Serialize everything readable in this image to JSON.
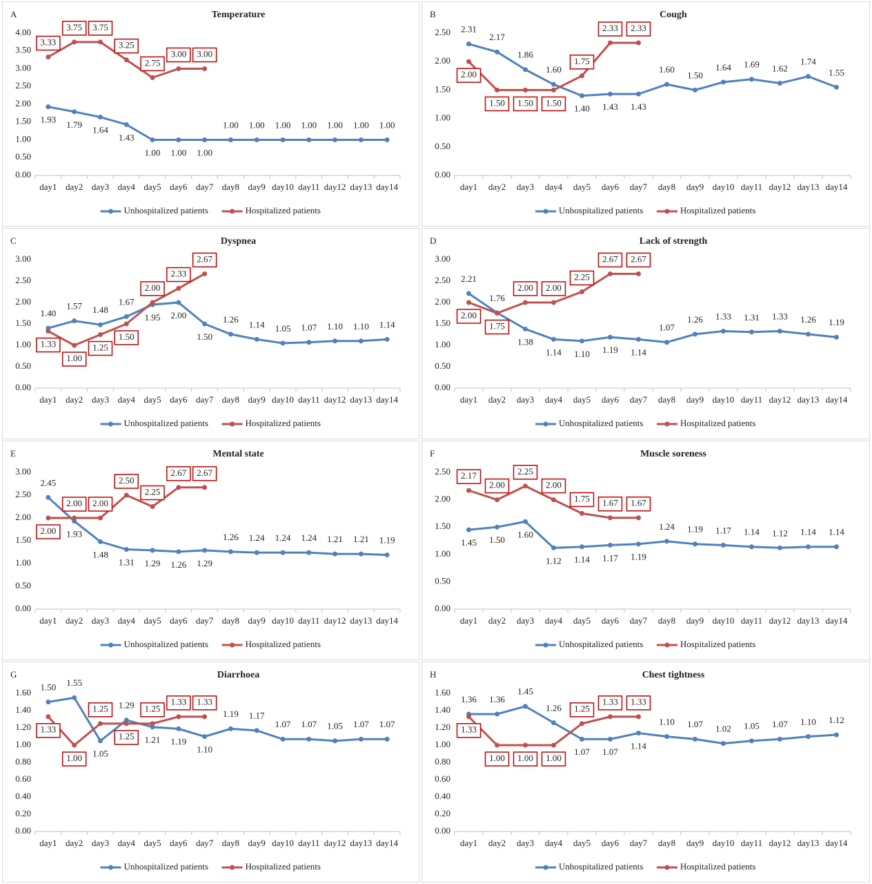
{
  "chart_data": [
    {
      "type": "line",
      "panel": "A",
      "title": "Temperature",
      "categories": [
        "day1",
        "day2",
        "day3",
        "day4",
        "day5",
        "day6",
        "day7",
        "day8",
        "day9",
        "day10",
        "day11",
        "day12",
        "day13",
        "day14"
      ],
      "ylim": [
        0,
        4
      ],
      "yticks": [
        {
          "value": 0,
          "label": "0.00"
        },
        {
          "value": 0.5,
          "label": "0.50"
        },
        {
          "value": 1,
          "label": "1.00"
        },
        {
          "value": 1.5,
          "label": "1.50"
        },
        {
          "value": 2,
          "label": "2.00"
        },
        {
          "value": 2.5,
          "label": "2.50"
        },
        {
          "value": 3,
          "label": "3.00"
        },
        {
          "value": 3.5,
          "label": "3.50"
        },
        {
          "value": 4,
          "label": "4.00"
        }
      ],
      "series": [
        {
          "name": "Unhospitalized patients",
          "color": "#4f81bd",
          "values": [
            1.93,
            1.79,
            1.64,
            1.43,
            1,
            1,
            1,
            1,
            1,
            1,
            1,
            1,
            1,
            1
          ],
          "value_labels": [
            "1.93",
            "1.79",
            "1.64",
            "1.43",
            "1.00",
            "1.00",
            "1.00",
            "1.00",
            "1.00",
            "1.00",
            "1.00",
            "1.00",
            "1.00",
            "1.00"
          ]
        },
        {
          "name": "Hospitalized patients",
          "color": "#c0504d",
          "values": [
            3.33,
            3.75,
            3.75,
            3.25,
            2.75,
            3,
            3,
            null,
            null,
            null,
            null,
            null,
            null,
            null
          ],
          "value_labels": [
            "3.33",
            "3.75",
            "3.75",
            "3.25",
            "2.75",
            "3.00",
            "3.00",
            null,
            null,
            null,
            null,
            null,
            null,
            null
          ]
        }
      ]
    },
    {
      "type": "line",
      "panel": "B",
      "title": "Cough",
      "categories": [
        "day1",
        "day2",
        "day3",
        "day4",
        "day5",
        "day6",
        "day7",
        "day8",
        "day9",
        "day10",
        "day11",
        "day12",
        "day13",
        "day14"
      ],
      "ylim": [
        0,
        2.5
      ],
      "yticks": [
        {
          "value": 0,
          "label": "0.00"
        },
        {
          "value": 0.5,
          "label": "0.50"
        },
        {
          "value": 1,
          "label": "1.00"
        },
        {
          "value": 1.5,
          "label": "1.50"
        },
        {
          "value": 2,
          "label": "2.00"
        },
        {
          "value": 2.5,
          "label": "2.50"
        }
      ],
      "series": [
        {
          "name": "Unhospitalized patients",
          "color": "#4f81bd",
          "values": [
            2.31,
            2.17,
            1.86,
            1.6,
            1.4,
            1.43,
            1.43,
            1.6,
            1.5,
            1.64,
            1.69,
            1.62,
            1.74,
            1.55
          ],
          "value_labels": [
            "2.31",
            "2.17",
            "1.86",
            "1.60",
            "1.40",
            "1.43",
            "1.43",
            "1.60",
            "1.50",
            "1.64",
            "1.69",
            "1.62",
            "1.74",
            "1.55"
          ]
        },
        {
          "name": "Hospitalized patients",
          "color": "#c0504d",
          "values": [
            2,
            1.5,
            1.5,
            1.5,
            1.75,
            2.33,
            2.33,
            null,
            null,
            null,
            null,
            null,
            null,
            null
          ],
          "value_labels": [
            "2.00",
            "1.50",
            "1.50",
            "1.50",
            "1.75",
            "2.33",
            "2.33",
            null,
            null,
            null,
            null,
            null,
            null,
            null
          ]
        }
      ]
    },
    {
      "type": "line",
      "panel": "C",
      "title": "Dyspnea",
      "categories": [
        "day1",
        "day2",
        "day3",
        "day4",
        "day5",
        "day6",
        "day7",
        "day8",
        "day9",
        "day10",
        "day11",
        "day12",
        "day13",
        "day14"
      ],
      "ylim": [
        0,
        3
      ],
      "yticks": [
        {
          "value": 0,
          "label": "0.00"
        },
        {
          "value": 0.5,
          "label": "0.50"
        },
        {
          "value": 1,
          "label": "1.00"
        },
        {
          "value": 1.5,
          "label": "1.50"
        },
        {
          "value": 2,
          "label": "2.00"
        },
        {
          "value": 2.5,
          "label": "2.50"
        },
        {
          "value": 3,
          "label": "3.00"
        }
      ],
      "series": [
        {
          "name": "Unhospitalized patients",
          "color": "#4f81bd",
          "values": [
            1.4,
            1.57,
            1.48,
            1.67,
            1.95,
            2,
            1.5,
            1.26,
            1.14,
            1.05,
            1.07,
            1.1,
            1.1,
            1.14
          ],
          "value_labels": [
            "1.40",
            "1.57",
            "1.48",
            "1.67",
            "1.95",
            "2.00",
            "1.50",
            "1.26",
            "1.14",
            "1.05",
            "1.07",
            "1.10",
            "1.10",
            "1.14"
          ]
        },
        {
          "name": "Hospitalized patients",
          "color": "#c0504d",
          "values": [
            1.33,
            1,
            1.25,
            1.5,
            2,
            2.33,
            2.67,
            null,
            null,
            null,
            null,
            null,
            null,
            null
          ],
          "value_labels": [
            "1.33",
            "1.00",
            "1.25",
            "1.50",
            "2.00",
            "2.33",
            "2.67",
            null,
            null,
            null,
            null,
            null,
            null,
            null
          ]
        }
      ]
    },
    {
      "type": "line",
      "panel": "D",
      "title": "Lack of strength",
      "categories": [
        "day1",
        "day2",
        "day3",
        "day4",
        "day5",
        "day6",
        "day7",
        "day8",
        "day9",
        "day10",
        "day11",
        "day12",
        "day13",
        "day14"
      ],
      "ylim": [
        0,
        3
      ],
      "yticks": [
        {
          "value": 0,
          "label": "0.00"
        },
        {
          "value": 0.5,
          "label": "0.50"
        },
        {
          "value": 1,
          "label": "1.00"
        },
        {
          "value": 1.5,
          "label": "1.50"
        },
        {
          "value": 2,
          "label": "2.00"
        },
        {
          "value": 2.5,
          "label": "2.50"
        },
        {
          "value": 3,
          "label": "3.00"
        }
      ],
      "series": [
        {
          "name": "Unhospitalized patients",
          "color": "#4f81bd",
          "values": [
            2.21,
            1.76,
            1.38,
            1.14,
            1.1,
            1.19,
            1.14,
            1.07,
            1.26,
            1.33,
            1.31,
            1.33,
            1.26,
            1.19
          ],
          "value_labels": [
            "2.21",
            "1.76",
            "1.38",
            "1.14",
            "1.10",
            "1.19",
            "1.14",
            "1.07",
            "1.26",
            "1.33",
            "1.31",
            "1.33",
            "1.26",
            "1.19"
          ]
        },
        {
          "name": "Hospitalized patients",
          "color": "#c0504d",
          "values": [
            2,
            1.75,
            2,
            2,
            2.25,
            2.67,
            2.67,
            null,
            null,
            null,
            null,
            null,
            null,
            null
          ],
          "value_labels": [
            "2.00",
            "1.75",
            "2.00",
            "2.00",
            "2.25",
            "2.67",
            "2.67",
            null,
            null,
            null,
            null,
            null,
            null,
            null
          ]
        }
      ]
    },
    {
      "type": "line",
      "panel": "E",
      "title": "Mental state",
      "categories": [
        "day1",
        "day2",
        "day3",
        "day4",
        "day5",
        "day6",
        "day7",
        "day8",
        "day9",
        "day10",
        "day11",
        "day12",
        "day13",
        "day14"
      ],
      "ylim": [
        0,
        3
      ],
      "yticks": [
        {
          "value": 0,
          "label": "0.00"
        },
        {
          "value": 0.5,
          "label": "0.50"
        },
        {
          "value": 1,
          "label": "1.00"
        },
        {
          "value": 1.5,
          "label": "1.50"
        },
        {
          "value": 2,
          "label": "2.00"
        },
        {
          "value": 2.5,
          "label": "2.50"
        },
        {
          "value": 3,
          "label": "3.00"
        }
      ],
      "series": [
        {
          "name": "Unhospitalized patients",
          "color": "#4f81bd",
          "values": [
            2.45,
            1.93,
            1.48,
            1.31,
            1.29,
            1.26,
            1.29,
            1.26,
            1.24,
            1.24,
            1.24,
            1.21,
            1.21,
            1.19
          ],
          "value_labels": [
            "2.45",
            "1.93",
            "1.48",
            "1.31",
            "1.29",
            "1.26",
            "1.29",
            "1.26",
            "1.24",
            "1.24",
            "1.24",
            "1.21",
            "1.21",
            "1.19"
          ]
        },
        {
          "name": "Hospitalized patients",
          "color": "#c0504d",
          "values": [
            2,
            2,
            2,
            2.5,
            2.25,
            2.67,
            2.67,
            null,
            null,
            null,
            null,
            null,
            null,
            null
          ],
          "value_labels": [
            "2.00",
            "2.00",
            "2.00",
            "2.50",
            "2.25",
            "2.67",
            "2.67",
            null,
            null,
            null,
            null,
            null,
            null,
            null
          ]
        }
      ]
    },
    {
      "type": "line",
      "panel": "F",
      "title": "Muscle soreness",
      "categories": [
        "day1",
        "day2",
        "day3",
        "day4",
        "day5",
        "day6",
        "day7",
        "day8",
        "day9",
        "day10",
        "day11",
        "day12",
        "day13",
        "day14"
      ],
      "ylim": [
        0,
        2.5
      ],
      "yticks": [
        {
          "value": 0,
          "label": "0.00"
        },
        {
          "value": 0.5,
          "label": "0.50"
        },
        {
          "value": 1,
          "label": "1.00"
        },
        {
          "value": 1.5,
          "label": "1.50"
        },
        {
          "value": 2,
          "label": "2.00"
        },
        {
          "value": 2.5,
          "label": "2.50"
        }
      ],
      "series": [
        {
          "name": "Unhospitalized patients",
          "color": "#4f81bd",
          "values": [
            1.45,
            1.5,
            1.6,
            1.12,
            1.14,
            1.17,
            1.19,
            1.24,
            1.19,
            1.17,
            1.14,
            1.12,
            1.14,
            1.14
          ],
          "value_labels": [
            "1.45",
            "1.50",
            "1.60",
            "1.12",
            "1.14",
            "1.17",
            "1.19",
            "1.24",
            "1.19",
            "1.17",
            "1.14",
            "1.12",
            "1.14",
            "1.14"
          ]
        },
        {
          "name": "Hospitalized patients",
          "color": "#c0504d",
          "values": [
            2.17,
            2,
            2.25,
            2,
            1.75,
            1.67,
            1.67,
            null,
            null,
            null,
            null,
            null,
            null,
            null
          ],
          "value_labels": [
            "2.17",
            "2.00",
            "2.25",
            "2.00",
            "1.75",
            "1.67",
            "1.67",
            null,
            null,
            null,
            null,
            null,
            null,
            null
          ]
        }
      ]
    },
    {
      "type": "line",
      "panel": "G",
      "title": "Diarrhoea",
      "categories": [
        "day1",
        "day2",
        "day3",
        "day4",
        "day5",
        "day6",
        "day7",
        "day8",
        "day9",
        "day10",
        "day11",
        "day12",
        "day13",
        "day14"
      ],
      "ylim": [
        0,
        1.6
      ],
      "yticks": [
        {
          "value": 0,
          "label": "0.00"
        },
        {
          "value": 0.2,
          "label": "0.20"
        },
        {
          "value": 0.4,
          "label": "0.40"
        },
        {
          "value": 0.6,
          "label": "0.60"
        },
        {
          "value": 0.8,
          "label": "0.80"
        },
        {
          "value": 1,
          "label": "1.00"
        },
        {
          "value": 1.2,
          "label": "1.20"
        },
        {
          "value": 1.4,
          "label": "1.40"
        },
        {
          "value": 1.6,
          "label": "1.60"
        }
      ],
      "series": [
        {
          "name": "Unhospitalized patients",
          "color": "#4f81bd",
          "values": [
            1.5,
            1.55,
            1.05,
            1.29,
            1.21,
            1.19,
            1.1,
            1.19,
            1.17,
            1.07,
            1.07,
            1.05,
            1.07,
            1.07
          ],
          "value_labels": [
            "1.50",
            "1.55",
            "1.05",
            "1.29",
            "1.21",
            "1.19",
            "1.10",
            "1.19",
            "1.17",
            "1.07",
            "1.07",
            "1.05",
            "1.07",
            "1.07"
          ]
        },
        {
          "name": "Hospitalized patients",
          "color": "#c0504d",
          "values": [
            1.33,
            1,
            1.25,
            1.25,
            1.25,
            1.33,
            1.33,
            null,
            null,
            null,
            null,
            null,
            null,
            null
          ],
          "value_labels": [
            "1.33",
            "1.00",
            "1.25",
            "1.25",
            "1.25",
            "1.33",
            "1.33",
            null,
            null,
            null,
            null,
            null,
            null,
            null
          ]
        }
      ]
    },
    {
      "type": "line",
      "panel": "H",
      "title": "Chest tightness",
      "categories": [
        "day1",
        "day2",
        "day3",
        "day4",
        "day5",
        "day6",
        "day7",
        "day8",
        "day9",
        "day10",
        "day11",
        "day12",
        "day13",
        "day14"
      ],
      "ylim": [
        0,
        1.6
      ],
      "yticks": [
        {
          "value": 0,
          "label": "0.00"
        },
        {
          "value": 0.2,
          "label": "0.20"
        },
        {
          "value": 0.4,
          "label": "0.40"
        },
        {
          "value": 0.6,
          "label": "0.60"
        },
        {
          "value": 0.8,
          "label": "0.80"
        },
        {
          "value": 1,
          "label": "1.00"
        },
        {
          "value": 1.2,
          "label": "1.20"
        },
        {
          "value": 1.4,
          "label": "1.40"
        },
        {
          "value": 1.6,
          "label": "1.60"
        }
      ],
      "series": [
        {
          "name": "Unhospitalized patients",
          "color": "#4f81bd",
          "values": [
            1.36,
            1.36,
            1.45,
            1.26,
            1.07,
            1.07,
            1.14,
            1.1,
            1.07,
            1.02,
            1.05,
            1.07,
            1.1,
            1.12
          ],
          "value_labels": [
            "1.36",
            "1.36",
            "1.45",
            "1.26",
            "1.07",
            "1.07",
            "1.14",
            "1.10",
            "1.07",
            "1.02",
            "1.05",
            "1.07",
            "1.10",
            "1.12"
          ]
        },
        {
          "name": "Hospitalized patients",
          "color": "#c0504d",
          "values": [
            1.33,
            1,
            1,
            1,
            1.25,
            1.33,
            1.33,
            null,
            null,
            null,
            null,
            null,
            null,
            null
          ],
          "value_labels": [
            "1.33",
            "1.00",
            "1.00",
            "1.00",
            "1.25",
            "1.33",
            "1.33",
            null,
            null,
            null,
            null,
            null,
            null,
            null
          ]
        }
      ]
    }
  ]
}
